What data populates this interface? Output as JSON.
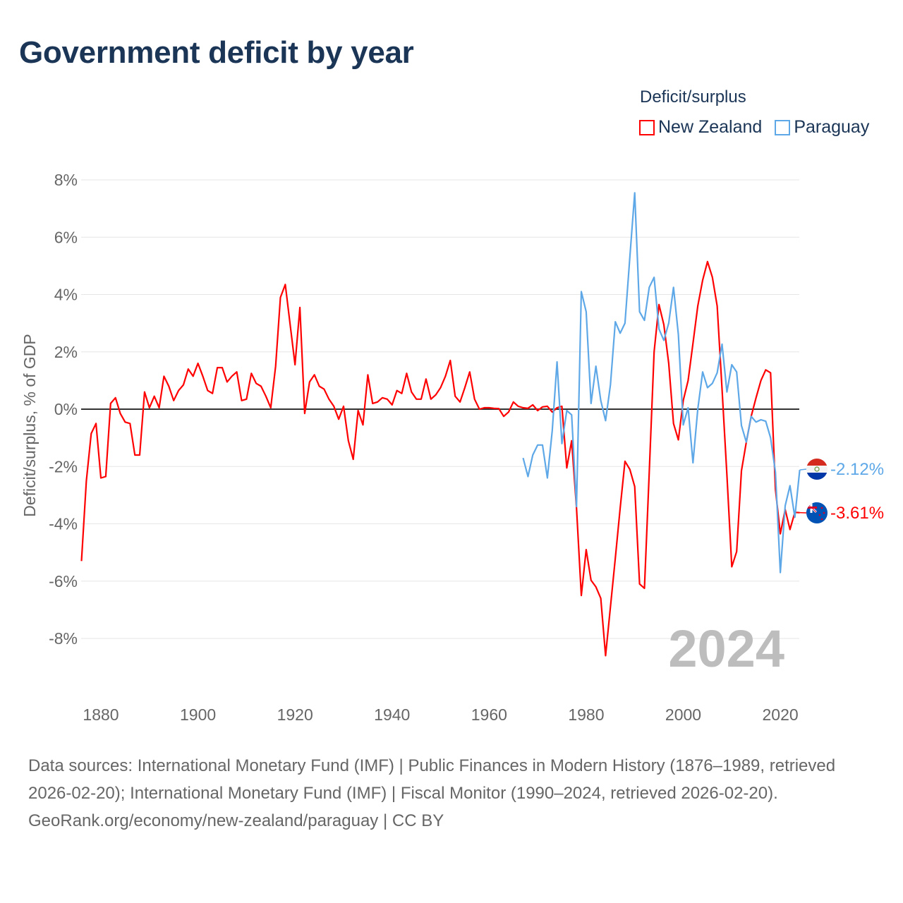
{
  "title": "Government deficit by year",
  "legend": {
    "title": "Deficit/surplus",
    "items": [
      {
        "name": "New Zealand",
        "color": "#ff0000"
      },
      {
        "name": "Paraguay",
        "color": "#5ea8e8"
      }
    ]
  },
  "chart_data": {
    "type": "line",
    "title": "Government deficit by year",
    "xlabel": "",
    "ylabel": "Deficit/surplus, % of GDP",
    "xlim": [
      1876,
      2024
    ],
    "ylim": [
      -10,
      8
    ],
    "x_ticks": [
      1880,
      1900,
      1920,
      1940,
      1960,
      1980,
      2000,
      2020
    ],
    "x_tick_labels": [
      "1880",
      "1900",
      "1920",
      "1940",
      "1960",
      "1980",
      "2000",
      "2020"
    ],
    "y_ticks": [
      8,
      6,
      4,
      2,
      0,
      -2,
      -4,
      -6,
      -8
    ],
    "y_tick_labels": [
      "8%",
      "6%",
      "4%",
      "2%",
      "0%",
      "-2%",
      "-4%",
      "-6%",
      "-8%"
    ],
    "grid": true,
    "legend_position": "top-right",
    "year_watermark": "2024",
    "series": [
      {
        "name": "New Zealand",
        "color": "#ff0000",
        "start_year": 1876,
        "end_label": "-3.61%",
        "values": [
          -5.3,
          -2.5,
          -0.85,
          -0.5,
          -2.4,
          -2.35,
          0.2,
          0.4,
          -0.15,
          -0.45,
          -0.5,
          -1.6,
          -1.6,
          0.6,
          0.05,
          0.45,
          0.05,
          1.15,
          0.8,
          0.3,
          0.65,
          0.85,
          1.4,
          1.15,
          1.6,
          1.15,
          0.65,
          0.55,
          1.45,
          1.45,
          0.95,
          1.15,
          1.3,
          0.3,
          0.35,
          1.25,
          0.9,
          0.8,
          0.45,
          0.05,
          1.5,
          3.9,
          4.35,
          2.95,
          1.55,
          3.55,
          -0.15,
          0.95,
          1.2,
          0.8,
          0.7,
          0.35,
          0.1,
          -0.35,
          0.1,
          -1.1,
          -1.75,
          -0.05,
          -0.55,
          1.2,
          0.2,
          0.25,
          0.4,
          0.35,
          0.15,
          0.65,
          0.55,
          1.25,
          0.6,
          0.35,
          0.35,
          1.05,
          0.35,
          0.5,
          0.75,
          1.15,
          1.7,
          0.45,
          0.25,
          0.75,
          1.3,
          0.35,
          0,
          0.05,
          0.05,
          0.03,
          0.02,
          -0.25,
          -0.1,
          0.25,
          0.1,
          0.05,
          0.03,
          0.15,
          -0.05,
          0.08,
          0.1,
          -0.1,
          0.05,
          0.1,
          -2.05,
          -1.1,
          -3.45,
          -6.5,
          -4.9,
          -5.97,
          -6.2,
          -6.6,
          -8.6,
          -6.9,
          -5.2,
          -3.45,
          -1.82,
          -2.1,
          -2.7,
          -6.1,
          -6.25,
          -2.2,
          2.0,
          3.65,
          2.95,
          1.6,
          -0.5,
          -1.07,
          0.3,
          1.0,
          2.3,
          3.6,
          4.5,
          5.15,
          4.6,
          3.6,
          0.7,
          -2.3,
          -5.5,
          -4.97,
          -2.15,
          -1.15,
          -0.25,
          0.4,
          1.0,
          1.37,
          1.27,
          -2.8,
          -4.35,
          -3.5,
          -4.2,
          -3.6,
          -3.61
        ]
      },
      {
        "name": "Paraguay",
        "color": "#5ea8e8",
        "start_year": 1967,
        "end_label": "-2.12%",
        "values": [
          -1.7,
          -2.35,
          -1.6,
          -1.25,
          -1.25,
          -2.4,
          -0.75,
          1.65,
          -1.2,
          -0.05,
          -0.2,
          -3.4,
          4.1,
          3.4,
          0.2,
          1.5,
          0.3,
          -0.4,
          0.85,
          3.05,
          2.65,
          3.0,
          5.3,
          7.55,
          3.4,
          3.1,
          4.25,
          4.6,
          2.8,
          2.4,
          3.0,
          4.25,
          2.6,
          -0.55,
          0.05,
          -1.87,
          0,
          1.3,
          0.75,
          0.9,
          1.27,
          2.27,
          0.6,
          1.55,
          1.3,
          -0.57,
          -1.15,
          -0.25,
          -0.45,
          -0.37,
          -0.42,
          -1.0,
          -2.2,
          -5.7,
          -3.37,
          -2.67,
          -3.77,
          -2.12
        ]
      }
    ]
  },
  "icons": {
    "paraguay_flag": "paraguay-flag-icon",
    "nz_flag": "new-zealand-flag-icon"
  },
  "footer": {
    "sources": "Data sources: International Monetary Fund (IMF) | Public Finances in Modern History (1876–1989, retrieved 2026-02-20); International Monetary Fund (IMF) | Fiscal Monitor (1990–2024, retrieved 2026-02-20).",
    "credit": "GeoRank.org/economy/new-zealand/paraguay | CC BY"
  }
}
